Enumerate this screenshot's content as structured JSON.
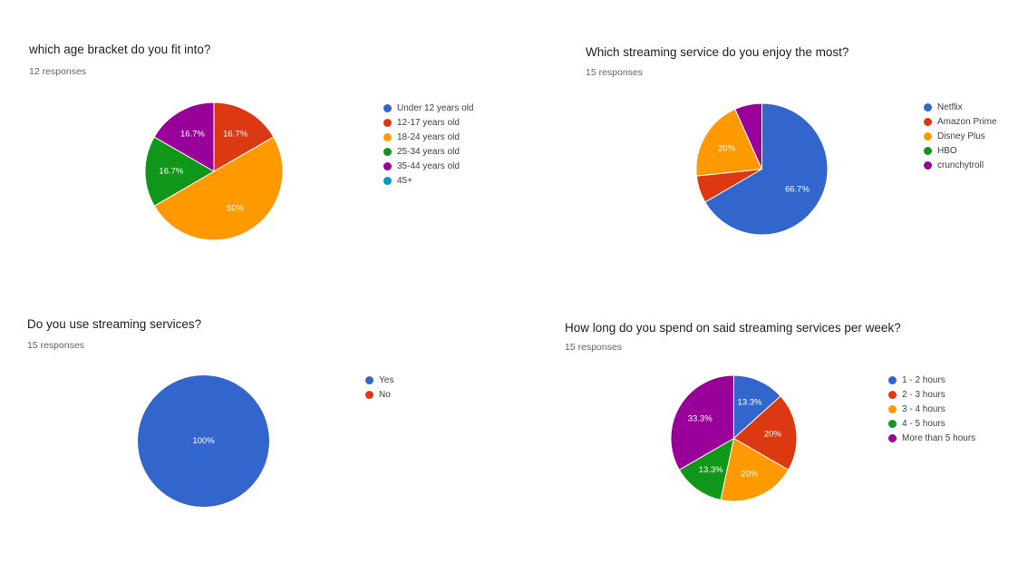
{
  "chart_data": [
    {
      "type": "pie",
      "title": "which age bracket do you fit into?",
      "subtitle": "12 responses",
      "legend_position": "right",
      "categories": [
        "Under 12 years old",
        "12-17 years old",
        "18-24 years old",
        "25-34 years old",
        "35-44 years old",
        "45+"
      ],
      "values": [
        0,
        16.7,
        50,
        16.7,
        16.7,
        0
      ],
      "labels": [
        "",
        "16.7%",
        "50%",
        "16.7%",
        "16.7%",
        ""
      ],
      "colors": [
        "#3366cc",
        "#dc3912",
        "#ff9900",
        "#109618",
        "#990099",
        "#0099c6"
      ]
    },
    {
      "type": "pie",
      "title": "Which streaming service do you enjoy the most?",
      "subtitle": "15 responses",
      "legend_position": "right",
      "categories": [
        "Netflix",
        "Amazon Prime",
        "Disney Plus",
        "HBO",
        "crunchytroll"
      ],
      "values": [
        66.7,
        6.7,
        20,
        0,
        6.7
      ],
      "labels": [
        "66.7%",
        "",
        "20%",
        "",
        ""
      ],
      "colors": [
        "#3366cc",
        "#dc3912",
        "#ff9900",
        "#109618",
        "#990099"
      ]
    },
    {
      "type": "pie",
      "title": "Do you use streaming services?",
      "subtitle": "15 responses",
      "legend_position": "right",
      "categories": [
        "Yes",
        "No"
      ],
      "values": [
        100,
        0
      ],
      "labels": [
        "100%",
        ""
      ],
      "colors": [
        "#3366cc",
        "#dc3912"
      ]
    },
    {
      "type": "pie",
      "title": "How long do you spend on said streaming services per week?",
      "subtitle": "15 responses",
      "legend_position": "right",
      "categories": [
        "1 - 2 hours",
        "2 - 3 hours",
        "3 - 4 hours",
        "4 - 5 hours",
        "More than 5 hours"
      ],
      "values": [
        13.3,
        20,
        20,
        13.3,
        33.3
      ],
      "labels": [
        "13.3%",
        "20%",
        "20%",
        "13.3%",
        "33.3%"
      ],
      "colors": [
        "#3366cc",
        "#dc3912",
        "#ff9900",
        "#109618",
        "#990099"
      ]
    }
  ]
}
